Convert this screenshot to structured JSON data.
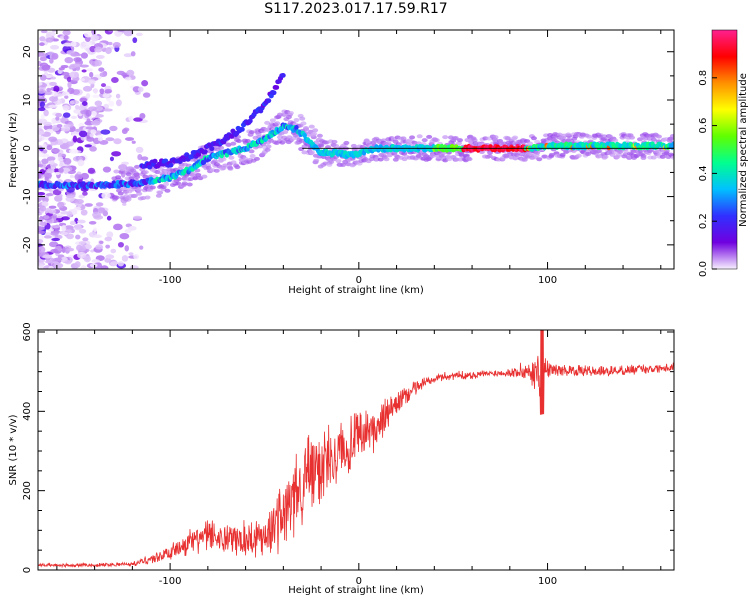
{
  "title": "S117.2023.017.17.59.R17",
  "chart_data": [
    {
      "type": "heatmap",
      "xlabel": "Height of straight line (km)",
      "ylabel": "Frequency (Hz)",
      "xlim": [
        -170,
        167
      ],
      "ylim": [
        -25,
        24.5
      ],
      "xticks": [
        -100,
        0,
        100
      ],
      "yticks": [
        -20,
        -10,
        0,
        10,
        20
      ],
      "colorbar": {
        "label": "Normalized spectral amplitude",
        "range": [
          0,
          1
        ],
        "ticks": [
          0.0,
          0.2,
          0.4,
          0.6,
          0.8
        ],
        "colormap": [
          "#f8f0ff",
          "#7000e0",
          "#3030ff",
          "#00c0ff",
          "#00ff90",
          "#60ff00",
          "#ffff00",
          "#ff9000",
          "#ff0000",
          "#ff2090"
        ]
      },
      "reference_line_y": 0,
      "main_track": [
        [
          -170,
          -7.5
        ],
        [
          -150,
          -7.8
        ],
        [
          -130,
          -7.5
        ],
        [
          -115,
          -7.2
        ],
        [
          -100,
          -6
        ],
        [
          -90,
          -4.5
        ],
        [
          -80,
          -2
        ],
        [
          -70,
          -1
        ],
        [
          -60,
          0
        ],
        [
          -50,
          2
        ],
        [
          -40,
          4.5
        ],
        [
          -33,
          4
        ],
        [
          -25,
          1
        ],
        [
          -20,
          -1
        ],
        [
          -10,
          -1
        ],
        [
          -5,
          -1.5
        ],
        [
          0,
          -1
        ],
        [
          10,
          0
        ],
        [
          30,
          0
        ],
        [
          60,
          0
        ],
        [
          90,
          0
        ],
        [
          100,
          0.5
        ],
        [
          130,
          0.5
        ],
        [
          167,
          0.5
        ]
      ],
      "secondary_track": [
        [
          -115,
          -3.5
        ],
        [
          -100,
          -3
        ],
        [
          -85,
          -1
        ],
        [
          -70,
          2
        ],
        [
          -60,
          5
        ],
        [
          -50,
          9
        ],
        [
          -45,
          12
        ],
        [
          -40,
          15
        ]
      ]
    },
    {
      "type": "line",
      "xlabel": "Height of straight line (km)",
      "ylabel": "SNR (10 * v/v)",
      "xlim": [
        -170,
        167
      ],
      "ylim": [
        0,
        605
      ],
      "xticks": [
        -100,
        0,
        100
      ],
      "yticks": [
        0,
        200,
        400,
        600
      ],
      "color": "#e83030",
      "envelope": [
        [
          -170,
          12
        ],
        [
          -140,
          12
        ],
        [
          -120,
          15
        ],
        [
          -110,
          28
        ],
        [
          -100,
          45
        ],
        [
          -90,
          70
        ],
        [
          -80,
          85
        ],
        [
          -70,
          80
        ],
        [
          -60,
          75
        ],
        [
          -50,
          90
        ],
        [
          -40,
          140
        ],
        [
          -30,
          220
        ],
        [
          -20,
          270
        ],
        [
          -10,
          300
        ],
        [
          0,
          330
        ],
        [
          10,
          360
        ],
        [
          20,
          420
        ],
        [
          30,
          460
        ],
        [
          40,
          485
        ],
        [
          50,
          490
        ],
        [
          60,
          492
        ],
        [
          80,
          498
        ],
        [
          95,
          500
        ],
        [
          100,
          505
        ],
        [
          130,
          500
        ],
        [
          167,
          512
        ]
      ],
      "noise_envelope": [
        [
          -170,
          4
        ],
        [
          -120,
          6
        ],
        [
          -100,
          22
        ],
        [
          -80,
          45
        ],
        [
          -50,
          55
        ],
        [
          -40,
          100
        ],
        [
          -30,
          120
        ],
        [
          -20,
          110
        ],
        [
          -10,
          80
        ],
        [
          0,
          70
        ],
        [
          10,
          60
        ],
        [
          20,
          30
        ],
        [
          40,
          12
        ],
        [
          80,
          10
        ],
        [
          92,
          40
        ],
        [
          97,
          80
        ],
        [
          102,
          15
        ],
        [
          167,
          12
        ]
      ]
    }
  ]
}
